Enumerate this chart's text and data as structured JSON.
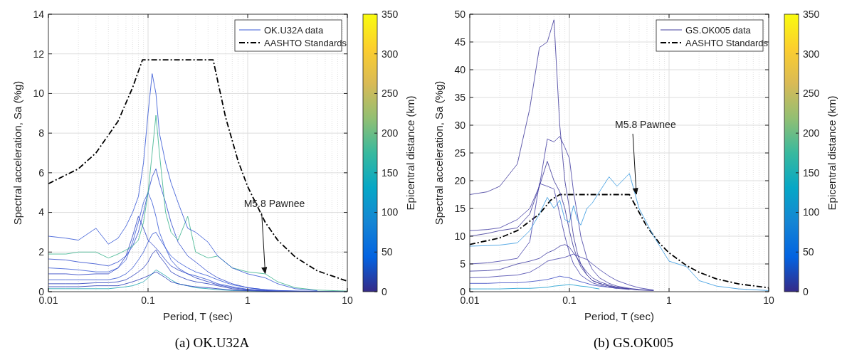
{
  "chart_data": [
    {
      "type": "line",
      "xlabel": "Period, T (sec)",
      "ylabel": "Spectral acceleration, Sa (%g)",
      "clabel": "Epicentral distance (km)",
      "clim": [
        0,
        350
      ],
      "cticks": [
        0,
        50,
        100,
        150,
        200,
        250,
        300,
        350
      ],
      "log": "x",
      "grid": true,
      "legend": "top right",
      "xlim": [
        0.01,
        10
      ],
      "xticks": [
        0.01,
        0.1,
        1,
        10
      ],
      "ylim": [
        0,
        14
      ],
      "yticks": [
        0,
        2,
        4,
        6,
        8,
        10,
        12,
        14
      ],
      "x": [
        0.01,
        0.015,
        0.02,
        0.03,
        0.04,
        0.05,
        0.06,
        0.07,
        0.08,
        0.09,
        0.1,
        0.11,
        0.12,
        0.13,
        0.15,
        0.17,
        0.2,
        0.25,
        0.3,
        0.4,
        0.5,
        0.7,
        1,
        1.5,
        2,
        3,
        5,
        10
      ],
      "annotations": [
        {
          "text": "M5.8 Pawnee",
          "x": 1.5,
          "y": 0.85
        },
        "(a) OK.U32A"
      ],
      "series": [
        {
          "name": "OK.U32A data",
          "color": "#3a5bd6",
          "values": [
            2.8,
            2.7,
            2.6,
            3.2,
            2.4,
            2.7,
            3.3,
            4.0,
            4.8,
            6.5,
            9.0,
            11.0,
            10.0,
            8.0,
            6.5,
            5.5,
            4.5,
            3.2,
            3.0,
            2.5,
            1.8,
            1.2,
            0.9,
            0.7,
            0.4,
            0.15,
            0.05,
            null
          ]
        },
        {
          "color": "#3fb58f",
          "values": [
            1.9,
            1.9,
            2.0,
            2.0,
            1.7,
            1.9,
            2.1,
            2.3,
            2.6,
            3.5,
            5.0,
            7.0,
            8.9,
            7.0,
            4.0,
            3.0,
            2.6,
            3.8,
            2.0,
            1.7,
            1.8,
            1.2,
            1.0,
            0.9,
            0.5,
            0.2,
            0.08,
            0.03
          ]
        },
        {
          "color": "#3550cf",
          "values": [
            1.65,
            1.6,
            1.5,
            1.4,
            1.3,
            1.5,
            1.8,
            2.3,
            3.0,
            4.0,
            5.0,
            5.8,
            6.2,
            5.5,
            4.5,
            3.5,
            2.5,
            1.8,
            1.5,
            1.0,
            0.7,
            0.4,
            0.2,
            0.1,
            0.06,
            0.03,
            0.02,
            null
          ]
        },
        {
          "color": "#3f5fd8",
          "values": [
            1.2,
            1.15,
            1.1,
            1.0,
            1.0,
            1.2,
            1.6,
            2.5,
            3.5,
            4.5,
            5.0,
            4.5,
            3.8,
            3.0,
            2.2,
            1.8,
            1.5,
            1.2,
            1.0,
            0.8,
            0.6,
            0.35,
            0.2,
            0.1,
            0.05,
            0.03,
            0.02,
            null
          ]
        },
        {
          "color": "#3147c4",
          "values": [
            0.9,
            0.9,
            0.85,
            0.9,
            0.9,
            1.2,
            1.8,
            2.8,
            3.8,
            3.2,
            2.6,
            2.4,
            2.2,
            2.0,
            1.6,
            1.3,
            1.1,
            0.9,
            0.7,
            0.5,
            0.35,
            0.2,
            0.1,
            0.05,
            0.03,
            0.02,
            0.01,
            null
          ]
        },
        {
          "color": "#3a58d3",
          "values": [
            0.6,
            0.6,
            0.6,
            0.6,
            0.6,
            0.7,
            0.9,
            1.2,
            1.6,
            2.0,
            2.5,
            2.9,
            3.0,
            2.7,
            2.2,
            1.6,
            1.2,
            0.9,
            0.8,
            0.6,
            0.4,
            0.25,
            0.12,
            0.06,
            0.03,
            0.02,
            0.01,
            null
          ]
        },
        {
          "color": "#2f43bd",
          "values": [
            0.4,
            0.4,
            0.4,
            0.45,
            0.45,
            0.5,
            0.6,
            0.8,
            1.0,
            1.2,
            1.5,
            1.9,
            2.1,
            1.8,
            1.4,
            1.0,
            0.8,
            0.6,
            0.5,
            0.4,
            0.3,
            0.15,
            0.08,
            0.04,
            0.02,
            0.01,
            0.01,
            0
          ]
        },
        {
          "color": "#2c3eb8",
          "values": [
            0.25,
            0.25,
            0.25,
            0.3,
            0.3,
            0.3,
            0.4,
            0.5,
            0.6,
            0.7,
            0.8,
            0.9,
            1.0,
            0.9,
            0.7,
            0.5,
            0.4,
            0.3,
            0.25,
            0.2,
            0.15,
            0.08,
            0.05,
            0.02,
            0.01,
            0.01,
            0,
            0
          ]
        },
        {
          "color": "#20a5b0",
          "values": [
            0.15,
            0.15,
            0.15,
            0.15,
            0.15,
            0.2,
            0.25,
            0.3,
            0.4,
            0.5,
            0.7,
            0.9,
            1.1,
            1.0,
            0.8,
            0.6,
            0.4,
            0.3,
            0.2,
            0.15,
            0.1,
            0.06,
            0.04,
            0.02,
            0.01,
            0.01,
            0,
            0
          ]
        },
        {
          "name": "AASHTO Standards",
          "color": "#000000",
          "line_style": "dashdot",
          "x": [
            0.01,
            0.02,
            0.03,
            0.05,
            0.07,
            0.088,
            0.45,
            0.6,
            0.8,
            1,
            1.5,
            2,
            3,
            5,
            10
          ],
          "values": [
            5.45,
            6.2,
            7.0,
            8.6,
            10.3,
            11.7,
            11.7,
            8.8,
            6.6,
            5.3,
            3.5,
            2.6,
            1.75,
            1.05,
            0.53
          ]
        }
      ]
    },
    {
      "type": "line",
      "xlabel": "Period, T (sec)",
      "ylabel": "Spectral acceleration, Sa (%g)",
      "clabel": "Epicentral distance (km)",
      "clim": [
        0,
        350
      ],
      "cticks": [
        0,
        50,
        100,
        150,
        200,
        250,
        300,
        350
      ],
      "log": "x",
      "grid": true,
      "legend": "top right",
      "xlim": [
        0.01,
        10
      ],
      "xticks": [
        0.01,
        0.1,
        1,
        10
      ],
      "ylim": [
        0,
        50
      ],
      "yticks": [
        0,
        5,
        10,
        15,
        20,
        25,
        30,
        35,
        40,
        45,
        50
      ],
      "x": [
        0.01,
        0.015,
        0.02,
        0.03,
        0.04,
        0.05,
        0.06,
        0.07,
        0.08,
        0.09,
        0.1,
        0.11,
        0.12,
        0.13,
        0.15,
        0.17,
        0.2,
        0.25,
        0.3,
        0.4,
        0.5,
        0.7,
        1,
        1.5,
        2,
        3,
        5,
        10
      ],
      "annotations": [
        {
          "text": "M5.8 Pawnee",
          "x": 0.47,
          "y": 17.3
        },
        "(b) GS.OK005"
      ],
      "series": [
        {
          "name": "GS.OK005 data",
          "color": "#45409e",
          "values": [
            17.5,
            18,
            19,
            23,
            33,
            44,
            45,
            49,
            30,
            20,
            15,
            10,
            7,
            5,
            3,
            2,
            1.5,
            1,
            0.8,
            0.5,
            0.3,
            0.2,
            null,
            null,
            null,
            null,
            null,
            null
          ]
        },
        {
          "color": "#3b9be0",
          "values": [
            8.2,
            8.3,
            8.4,
            8.8,
            11,
            14,
            17,
            15,
            16.5,
            13,
            12.5,
            15.5,
            13,
            12,
            15,
            16,
            18,
            20.7,
            19,
            21.3,
            15,
            10,
            5.5,
            4.5,
            2,
            1,
            0.5,
            0.2
          ]
        },
        {
          "color": "#4a44a6",
          "values": [
            11,
            11.2,
            11.5,
            13,
            15,
            19,
            27.5,
            27,
            28,
            26,
            24,
            18,
            14,
            10,
            6,
            4,
            2.5,
            1.5,
            1,
            0.6,
            0.4,
            0.2,
            null,
            null,
            null,
            null,
            null,
            null
          ]
        },
        {
          "color": "#403b9a",
          "values": [
            10,
            10.5,
            11,
            11.5,
            14,
            19,
            23.5,
            20,
            18,
            15,
            11,
            8,
            6,
            4.5,
            3,
            2,
            1.5,
            1,
            0.7,
            0.5,
            0.3,
            null,
            null,
            null,
            null,
            null,
            null,
            null
          ]
        },
        {
          "color": "#4b46aa",
          "values": [
            5,
            5.2,
            5.5,
            6,
            9,
            19.5,
            19,
            18.5,
            14,
            10,
            7,
            5,
            4,
            3,
            2.2,
            1.6,
            1.2,
            0.8,
            0.6,
            0.4,
            null,
            null,
            null,
            null,
            null,
            null,
            null,
            null
          ]
        },
        {
          "color": "#433fa2",
          "values": [
            3.7,
            3.8,
            4,
            5,
            5.5,
            6,
            7,
            7.5,
            8.2,
            8.5,
            8,
            7,
            6,
            5,
            3.5,
            2.5,
            1.8,
            1.2,
            0.8,
            0.5,
            null,
            null,
            null,
            null,
            null,
            null,
            null,
            null
          ]
        },
        {
          "color": "#4e4aae",
          "values": [
            2.5,
            2.6,
            2.8,
            3,
            3.5,
            4.5,
            5.5,
            5.8,
            6,
            6.2,
            6.5,
            6.8,
            6.5,
            6.2,
            5.8,
            5,
            4,
            2.8,
            2,
            1.2,
            0.7,
            0.3,
            null,
            null,
            null,
            null,
            null,
            null
          ]
        },
        {
          "color": "#3f4fc4",
          "values": [
            1.5,
            1.5,
            1.6,
            1.6,
            1.8,
            2,
            2.2,
            2.5,
            2.8,
            2.6,
            2.5,
            2.2,
            2.0,
            1.8,
            1.5,
            1.2,
            1.0,
            0.8,
            0.6,
            null,
            null,
            null,
            null,
            null,
            null,
            null,
            null,
            null
          ]
        },
        {
          "color": "#1e9fd0",
          "values": [
            0.5,
            0.5,
            0.5,
            0.6,
            0.6,
            0.7,
            0.8,
            1,
            1.1,
            1.2,
            1.3,
            1.2,
            1.1,
            1,
            0.9,
            0.7,
            0.5,
            null,
            null,
            null,
            null,
            null,
            null,
            null,
            null,
            null,
            null,
            null
          ]
        },
        {
          "name": "AASHTO Standards",
          "color": "#000000",
          "line_style": "dashdot",
          "x": [
            0.01,
            0.02,
            0.03,
            0.05,
            0.065,
            0.08,
            0.4,
            0.6,
            0.8,
            1,
            1.5,
            2,
            3,
            5,
            10
          ],
          "values": [
            8.5,
            9.7,
            11,
            14,
            16.5,
            17.5,
            17.5,
            11.7,
            8.75,
            7,
            4.7,
            3.5,
            2.3,
            1.4,
            0.7
          ]
        }
      ]
    }
  ]
}
